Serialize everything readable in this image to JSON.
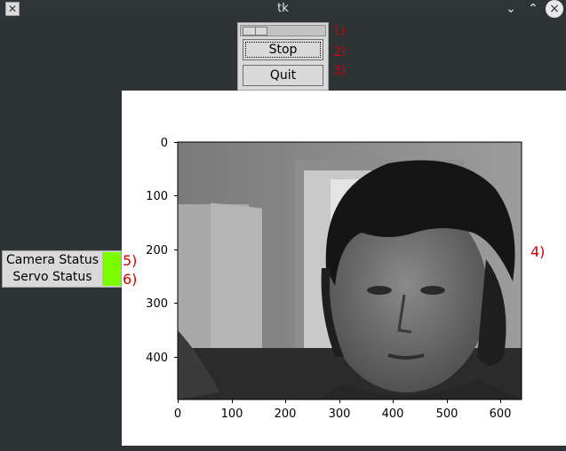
{
  "window": {
    "title": "tk",
    "app_icon": "x-window-icon",
    "controls": {
      "minimize": "chevron-down-icon",
      "maximize": "chevron-up-icon",
      "close": "close-icon"
    }
  },
  "controls": {
    "scale_icon": "scale-slider",
    "stop_label": "Stop",
    "quit_label": "Quit"
  },
  "annotations": [
    "1)",
    "2)",
    "3)",
    "4)",
    "5)",
    "6)"
  ],
  "status": {
    "camera_label": "Camera Status",
    "servo_label": "Servo Status",
    "indicator_color": "#7cfc00"
  },
  "figure": {
    "x_ticks": [
      "0",
      "100",
      "200",
      "300",
      "400",
      "500",
      "600"
    ],
    "y_ticks": [
      "0",
      "100",
      "200",
      "300",
      "400"
    ],
    "image_content": "grayscale webcam frame of a man's face in a room",
    "annotation_color": "#d00000"
  }
}
